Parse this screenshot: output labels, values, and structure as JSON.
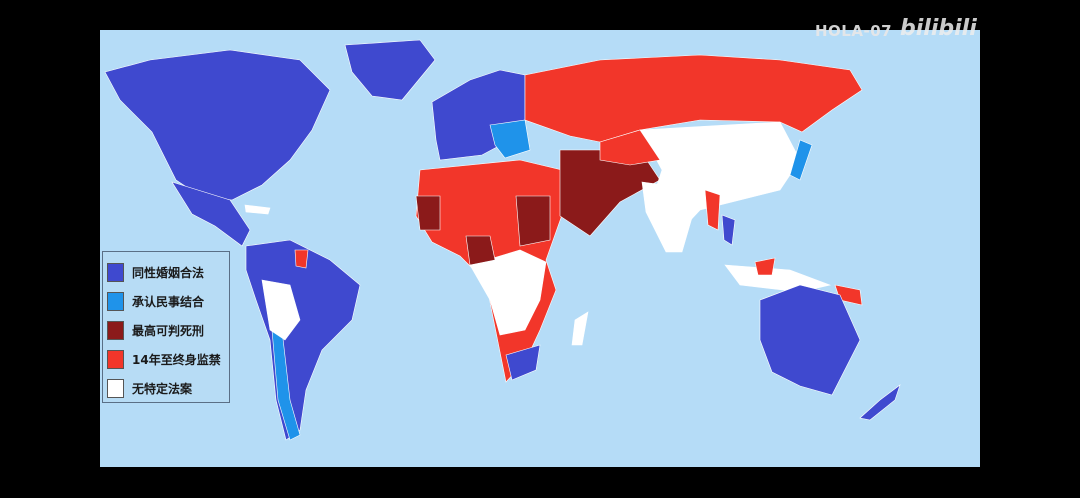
{
  "watermark": {
    "channel": "HOLA-07",
    "logo": "bilibili"
  },
  "map": {
    "ocean_color": "#b5dcf7"
  },
  "legend": {
    "items": [
      {
        "label": "同性婚姻合法",
        "color": "#3f49cf"
      },
      {
        "label": "承认民事结合",
        "color": "#1f93ea"
      },
      {
        "label": "最高可判死刑",
        "color": "#8b1a1a"
      },
      {
        "label": "14年至终身监禁",
        "color": "#f2362a"
      },
      {
        "label": "无特定法案",
        "color": "#ffffff"
      }
    ]
  }
}
